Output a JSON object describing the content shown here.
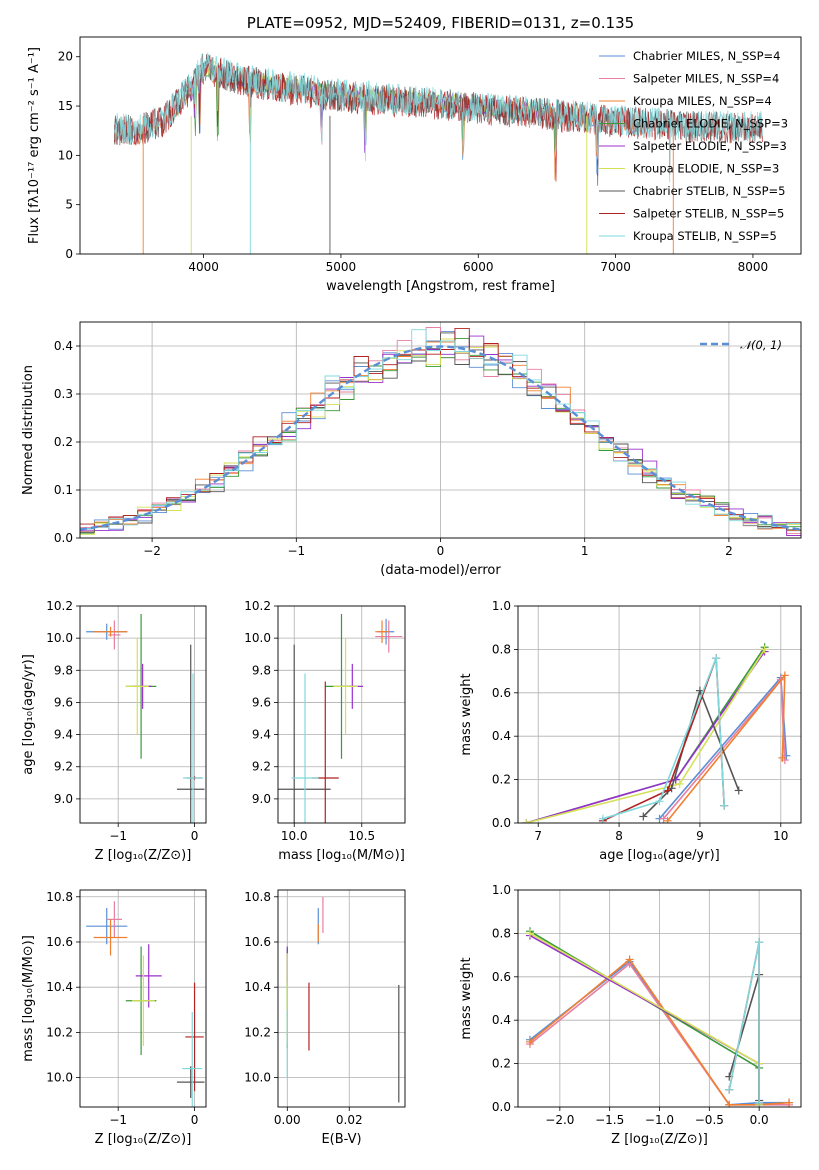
{
  "chart_data": [
    {
      "id": "spectrum",
      "type": "line",
      "title": "PLATE=0952, MJD=52409, FIBERID=0131, z=0.135",
      "xlabel": "wavelength [Angstrom, rest frame]",
      "ylabel": "Flux [fλ10⁻¹⁷ erg cm⁻² s⁻¹ A⁻¹]",
      "xlim": [
        3100,
        8350
      ],
      "ylim": [
        0,
        22
      ],
      "xticks": [
        4000,
        5000,
        6000,
        7000,
        8000
      ],
      "yticks": [
        0,
        5,
        10,
        15,
        20
      ],
      "legend_placement": "top-right",
      "series": [
        {
          "name": "Chabrier MILES, N_SSP=4",
          "color": "#5a8fd6",
          "x": [
            3350,
            3500,
            3700,
            3900,
            4000,
            4200,
            4500,
            5000,
            5500,
            6000,
            6500,
            6800,
            7000,
            7200
          ],
          "y": [
            12.4,
            12.0,
            13.2,
            16.5,
            18.5,
            17.5,
            17.0,
            16.0,
            15.5,
            14.8,
            14.2,
            13.8,
            13.4,
            13.0
          ]
        },
        {
          "name": "Salpeter MILES, N_SSP=4",
          "color": "#e87ea1",
          "x": [
            3350,
            3500,
            3700,
            3900,
            4000,
            4200,
            4500,
            5000,
            5500,
            6000,
            6500,
            6800,
            7000,
            7200
          ],
          "y": [
            12.5,
            12.1,
            13.3,
            16.6,
            18.6,
            17.6,
            17.1,
            16.1,
            15.6,
            14.9,
            14.3,
            13.9,
            13.5,
            13.1
          ]
        },
        {
          "name": "Kroupa MILES, N_SSP=4",
          "color": "#f08030",
          "x": [
            3350,
            3500,
            3700,
            3900,
            4000,
            4200,
            4500,
            5000,
            5500,
            6000,
            6500,
            6800,
            7000,
            7200
          ],
          "y": [
            12.3,
            11.8,
            13.0,
            16.3,
            18.4,
            17.4,
            16.9,
            15.9,
            15.4,
            14.7,
            14.1,
            13.7,
            13.3,
            12.9
          ]
        },
        {
          "name": "Chabrier ELODIE, N_SSP=3",
          "color": "#3a9a3a",
          "x": [
            3900,
            4000,
            4200,
            4500,
            5000,
            5500,
            6000,
            6500,
            6800
          ],
          "y": [
            16.0,
            18.8,
            18.0,
            17.2,
            16.2,
            15.6,
            15.0,
            14.3,
            14.0
          ]
        },
        {
          "name": "Salpeter ELODIE, N_SSP=3",
          "color": "#9932cc",
          "x": [
            3900,
            4000,
            4200,
            4500,
            5000,
            5500,
            6000,
            6500,
            6800
          ],
          "y": [
            16.1,
            18.9,
            18.1,
            17.3,
            16.3,
            15.7,
            15.1,
            14.4,
            14.1
          ]
        },
        {
          "name": "Kroupa ELODIE, N_SSP=3",
          "color": "#d4e157",
          "x": [
            3900,
            4000,
            4200,
            4500,
            5000,
            5500,
            6000,
            6500,
            6800
          ],
          "y": [
            16.2,
            19.0,
            18.2,
            17.4,
            16.4,
            15.8,
            15.2,
            14.5,
            14.2
          ]
        },
        {
          "name": "Chabrier STELIB, N_SSP=5",
          "color": "#555555",
          "x": [
            3350,
            3500,
            3700,
            3900,
            4000,
            4200,
            4500,
            5000,
            5500,
            6000,
            6500,
            7000,
            7500,
            8000,
            8070
          ],
          "y": [
            12.6,
            12.5,
            13.5,
            16.8,
            19.0,
            18.0,
            17.0,
            16.0,
            15.5,
            14.8,
            14.2,
            13.5,
            13.0,
            12.8,
            12.9
          ]
        },
        {
          "name": "Salpeter STELIB, N_SSP=5",
          "color": "#b22222",
          "x": [
            3350,
            3500,
            3700,
            3900,
            4000,
            4200,
            4500,
            5000,
            5500,
            6000,
            6500,
            7000,
            7500,
            8000,
            8070
          ],
          "y": [
            12.5,
            12.4,
            13.4,
            16.7,
            18.9,
            17.9,
            16.9,
            15.9,
            15.4,
            14.7,
            14.1,
            13.4,
            12.9,
            12.7,
            12.8
          ]
        },
        {
          "name": "Kroupa STELIB, N_SSP=5",
          "color": "#7fd8dc",
          "x": [
            3350,
            3500,
            3700,
            3900,
            4000,
            4200,
            4500,
            5000,
            5500,
            6000,
            6500,
            7000,
            7500,
            8000,
            8070
          ],
          "y": [
            12.7,
            12.6,
            13.6,
            16.9,
            19.2,
            18.2,
            17.2,
            16.2,
            15.6,
            14.9,
            14.3,
            13.6,
            13.1,
            12.9,
            13.0
          ]
        }
      ]
    },
    {
      "id": "residuals",
      "type": "line",
      "title": "",
      "xlabel": "(data-model)/error",
      "ylabel": "Normed distribution",
      "xlim": [
        -2.5,
        2.5
      ],
      "ylim": [
        0,
        0.45
      ],
      "xticks": [
        -2,
        -1,
        0,
        1,
        2
      ],
      "yticks": [
        0.0,
        0.1,
        0.2,
        0.3,
        0.4
      ],
      "grid": true,
      "legend_placement": "top-right",
      "legend": [
        "𝒩(0, 1)"
      ],
      "gaussian_color": "#5a8fd6",
      "histogram_colors": [
        "#5a8fd6",
        "#e87ea1",
        "#f08030",
        "#3a9a3a",
        "#9932cc",
        "#d4e157",
        "#555555",
        "#b22222",
        "#7fd8dc"
      ]
    },
    {
      "id": "age-vs-Z",
      "type": "scatter",
      "xlabel": "Z [log₁₀(Z/Z⊙)]",
      "ylabel": "age  [log₁₀(age/yr)]",
      "xlim": [
        -1.5,
        0.15
      ],
      "ylim": [
        8.85,
        10.2
      ],
      "xticks": [
        -1,
        0
      ],
      "yticks": [
        9.0,
        9.2,
        9.4,
        9.6,
        9.8,
        10.0,
        10.2
      ],
      "grid": true,
      "points": [
        {
          "x": -1.15,
          "y": 10.04,
          "xerr": 0.27,
          "yerr": 0.05,
          "color": "#5a8fd6"
        },
        {
          "x": -1.05,
          "y": 10.02,
          "xerr": 0.08,
          "yerr": 0.09,
          "color": "#e87ea1"
        },
        {
          "x": -1.1,
          "y": 10.04,
          "xerr": 0.22,
          "yerr": 0.03,
          "color": "#f08030"
        },
        {
          "x": -0.7,
          "y": 9.7,
          "xerr": 0.2,
          "yerr": 0.45,
          "color": "#3a9a3a"
        },
        {
          "x": -0.68,
          "y": 9.7,
          "xerr": 0.12,
          "yerr": 0.14,
          "color": "#9932cc"
        },
        {
          "x": -0.75,
          "y": 9.7,
          "xerr": 0.15,
          "yerr": 0.3,
          "color": "#d4e157"
        },
        {
          "x": -0.05,
          "y": 9.06,
          "xerr": 0.18,
          "yerr": 0.9,
          "color": "#555555"
        },
        {
          "x": 0.0,
          "y": 9.13,
          "xerr": 0.1,
          "yerr": 0.01,
          "color": "#b22222"
        },
        {
          "x": -0.02,
          "y": 9.13,
          "xerr": 0.13,
          "yerr": 0.65,
          "color": "#7fd8dc"
        }
      ]
    },
    {
      "id": "age-vs-mass",
      "type": "scatter",
      "xlabel": "mass [log₁₀(M/M⊙)]",
      "ylabel": "",
      "xlim": [
        9.88,
        10.82
      ],
      "ylim": [
        8.85,
        10.2
      ],
      "xticks": [
        10.0,
        10.5
      ],
      "yticks": [
        9.0,
        9.2,
        9.4,
        9.6,
        9.8,
        10.0,
        10.2
      ],
      "grid": true,
      "points": [
        {
          "x": 10.68,
          "y": 10.04,
          "xerr": 0.06,
          "yerr": 0.08,
          "color": "#5a8fd6"
        },
        {
          "x": 10.7,
          "y": 10.01,
          "xerr": 0.1,
          "yerr": 0.1,
          "color": "#e87ea1"
        },
        {
          "x": 10.65,
          "y": 10.04,
          "xerr": 0.05,
          "yerr": 0.07,
          "color": "#f08030"
        },
        {
          "x": 10.35,
          "y": 9.7,
          "xerr": 0.12,
          "yerr": 0.45,
          "color": "#3a9a3a"
        },
        {
          "x": 10.43,
          "y": 9.7,
          "xerr": 0.08,
          "yerr": 0.14,
          "color": "#9932cc"
        },
        {
          "x": 10.38,
          "y": 9.7,
          "xerr": 0.09,
          "yerr": 0.3,
          "color": "#d4e157"
        },
        {
          "x": 10.0,
          "y": 9.06,
          "xerr": 0.27,
          "yerr": 0.9,
          "color": "#555555"
        },
        {
          "x": 10.23,
          "y": 9.13,
          "xerr": 0.1,
          "yerr": 0.6,
          "color": "#b22222"
        },
        {
          "x": 10.08,
          "y": 9.13,
          "xerr": 0.1,
          "yerr": 0.65,
          "color": "#7fd8dc"
        }
      ]
    },
    {
      "id": "mass-weight-vs-age",
      "type": "line",
      "xlabel": "age  [log₁₀(age/yr)]",
      "ylabel": "mass weight",
      "xlim": [
        6.75,
        10.25
      ],
      "ylim": [
        0,
        1.0
      ],
      "xticks": [
        7,
        8,
        9,
        10
      ],
      "yticks": [
        0.0,
        0.2,
        0.4,
        0.6,
        0.8,
        1.0
      ],
      "grid": true,
      "series": [
        {
          "color": "#5a8fd6",
          "x": [
            8.5,
            10.0,
            10.07
          ],
          "y": [
            0.02,
            0.67,
            0.31
          ]
        },
        {
          "color": "#e87ea1",
          "x": [
            8.55,
            10.0,
            10.05
          ],
          "y": [
            0.02,
            0.66,
            0.29
          ]
        },
        {
          "color": "#f08030",
          "x": [
            8.6,
            10.05,
            10.02
          ],
          "y": [
            0.01,
            0.68,
            0.3
          ]
        },
        {
          "color": "#3a9a3a",
          "x": [
            6.85,
            8.7,
            9.8
          ],
          "y": [
            0.0,
            0.2,
            0.81
          ]
        },
        {
          "color": "#9932cc",
          "x": [
            6.85,
            8.7,
            9.8
          ],
          "y": [
            0.0,
            0.2,
            0.79
          ]
        },
        {
          "color": "#d4e157",
          "x": [
            6.85,
            8.75,
            9.8
          ],
          "y": [
            0.0,
            0.18,
            0.8
          ]
        },
        {
          "color": "#555555",
          "x": [
            8.3,
            8.65,
            9.0,
            9.48
          ],
          "y": [
            0.03,
            0.16,
            0.61,
            0.15
          ]
        },
        {
          "color": "#b22222",
          "x": [
            7.8,
            8.6,
            9.2,
            9.3
          ],
          "y": [
            0.01,
            0.15,
            0.76,
            0.08
          ]
        },
        {
          "color": "#7fd8dc",
          "x": [
            7.8,
            8.5,
            9.2,
            9.3
          ],
          "y": [
            0.02,
            0.1,
            0.76,
            0.08
          ]
        }
      ]
    },
    {
      "id": "mass-vs-Z",
      "type": "scatter",
      "xlabel": "Z [log₁₀(Z/Z⊙)]",
      "ylabel": "mass [log₁₀(M/M⊙)]",
      "xlim": [
        -1.5,
        0.15
      ],
      "ylim": [
        9.87,
        10.83
      ],
      "xticks": [
        -1,
        0
      ],
      "yticks": [
        10.0,
        10.2,
        10.4,
        10.6,
        10.8
      ],
      "grid": true,
      "points": [
        {
          "x": -1.15,
          "y": 10.67,
          "xerr": 0.27,
          "yerr": 0.08,
          "color": "#5a8fd6"
        },
        {
          "x": -1.05,
          "y": 10.7,
          "xerr": 0.1,
          "yerr": 0.08,
          "color": "#e87ea1"
        },
        {
          "x": -1.1,
          "y": 10.62,
          "xerr": 0.22,
          "yerr": 0.08,
          "color": "#f08030"
        },
        {
          "x": -0.7,
          "y": 10.34,
          "xerr": 0.2,
          "yerr": 0.24,
          "color": "#3a9a3a"
        },
        {
          "x": -0.6,
          "y": 10.45,
          "xerr": 0.17,
          "yerr": 0.14,
          "color": "#9932cc"
        },
        {
          "x": -0.67,
          "y": 10.34,
          "xerr": 0.15,
          "yerr": 0.2,
          "color": "#d4e157"
        },
        {
          "x": -0.05,
          "y": 9.98,
          "xerr": 0.18,
          "yerr": 0.07,
          "color": "#555555"
        },
        {
          "x": 0.0,
          "y": 10.18,
          "xerr": 0.12,
          "yerr": 0.24,
          "color": "#b22222"
        },
        {
          "x": -0.03,
          "y": 10.04,
          "xerr": 0.13,
          "yerr": 0.25,
          "color": "#7fd8dc"
        }
      ]
    },
    {
      "id": "mass-vs-EBV",
      "type": "scatter",
      "xlabel": "E(B-V)",
      "ylabel": "",
      "xlim": [
        -0.003,
        0.038
      ],
      "ylim": [
        9.87,
        10.83
      ],
      "xticks": [
        0.0,
        0.02
      ],
      "xtick_labels": [
        "0.00",
        "0.02"
      ],
      "yticks": [
        10.0,
        10.2,
        10.4,
        10.6,
        10.8
      ],
      "grid": true,
      "points": [
        {
          "x": 0.01,
          "y": 10.67,
          "xerr": 0,
          "yerr": 0.08,
          "color": "#5a8fd6"
        },
        {
          "x": 0.0115,
          "y": 10.72,
          "xerr": 0,
          "yerr": 0.08,
          "color": "#e87ea1"
        },
        {
          "x": 0.01,
          "y": 10.64,
          "xerr": 0,
          "yerr": 0.04,
          "color": "#f08030"
        },
        {
          "x": 0.0,
          "y": 10.35,
          "xerr": 0,
          "yerr": 0.22,
          "color": "#3a9a3a"
        },
        {
          "x": 0.0,
          "y": 10.5,
          "xerr": 0,
          "yerr": 0.08,
          "color": "#9932cc"
        },
        {
          "x": 0.0,
          "y": 10.35,
          "xerr": 0,
          "yerr": 0.2,
          "color": "#d4e157"
        },
        {
          "x": 0.036,
          "y": 10.15,
          "xerr": 0,
          "yerr": 0.26,
          "color": "#555555"
        },
        {
          "x": 0.007,
          "y": 10.27,
          "xerr": 0,
          "yerr": 0.15,
          "color": "#b22222"
        },
        {
          "x": 0.0,
          "y": 10.15,
          "xerr": 0,
          "yerr": 0.15,
          "color": "#7fd8dc"
        }
      ]
    },
    {
      "id": "mass-weight-vs-Z",
      "type": "line",
      "xlabel": "Z [log₁₀(Z/Z⊙)]",
      "ylabel": "mass weight",
      "xlim": [
        -2.42,
        0.42
      ],
      "ylim": [
        0,
        1.0
      ],
      "xticks": [
        -2.0,
        -1.5,
        -1.0,
        -0.5,
        0.0
      ],
      "yticks": [
        0.0,
        0.2,
        0.4,
        0.6,
        0.8,
        1.0
      ],
      "grid": true,
      "series": [
        {
          "color": "#5a8fd6",
          "x": [
            -2.3,
            -1.3,
            -0.3,
            0.0,
            0.3
          ],
          "y": [
            0.31,
            0.67,
            0.01,
            0.02,
            0.02
          ]
        },
        {
          "color": "#e87ea1",
          "x": [
            -2.3,
            -1.3,
            -0.3,
            0.0,
            0.3
          ],
          "y": [
            0.29,
            0.66,
            0.01,
            0.01,
            0.01
          ]
        },
        {
          "color": "#f08030",
          "x": [
            -2.3,
            -1.3,
            -0.3,
            0.0,
            0.3
          ],
          "y": [
            0.3,
            0.68,
            0.01,
            0.01,
            0.02
          ]
        },
        {
          "color": "#3a9a3a",
          "x": [
            -2.3,
            0.0,
            0.0
          ],
          "y": [
            0.81,
            0.18,
            0.01
          ]
        },
        {
          "color": "#9932cc",
          "x": [
            -2.3,
            0.0,
            0.0
          ],
          "y": [
            0.79,
            0.2,
            0.01
          ]
        },
        {
          "color": "#d4e157",
          "x": [
            -2.3,
            0.0,
            0.0
          ],
          "y": [
            0.8,
            0.2,
            0.01
          ]
        },
        {
          "color": "#555555",
          "x": [
            -0.3,
            0.0,
            0.0
          ],
          "y": [
            0.14,
            0.61,
            0.03
          ]
        },
        {
          "color": "#b22222",
          "x": [
            -0.3,
            0.0,
            0.0
          ],
          "y": [
            0.08,
            0.76,
            0.02
          ]
        },
        {
          "color": "#7fd8dc",
          "x": [
            -0.3,
            0.0,
            0.0
          ],
          "y": [
            0.08,
            0.76,
            0.02
          ]
        }
      ]
    }
  ]
}
